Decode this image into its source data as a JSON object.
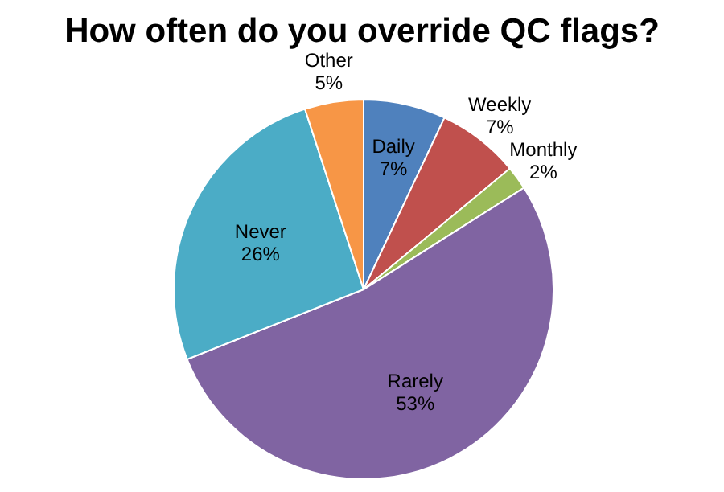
{
  "chart_data": {
    "type": "pie",
    "title": "How often do you override QC flags?",
    "categories": [
      "Daily",
      "Weekly",
      "Monthly",
      "Rarely",
      "Never",
      "Other"
    ],
    "values": [
      7,
      7,
      2,
      53,
      26,
      5
    ],
    "colors": [
      "#4f81bd",
      "#c0504d",
      "#9bbb59",
      "#8064a2",
      "#4bacc6",
      "#f79646"
    ],
    "value_labels": [
      "7%",
      "7%",
      "2%",
      "53%",
      "26%",
      "5%"
    ]
  }
}
